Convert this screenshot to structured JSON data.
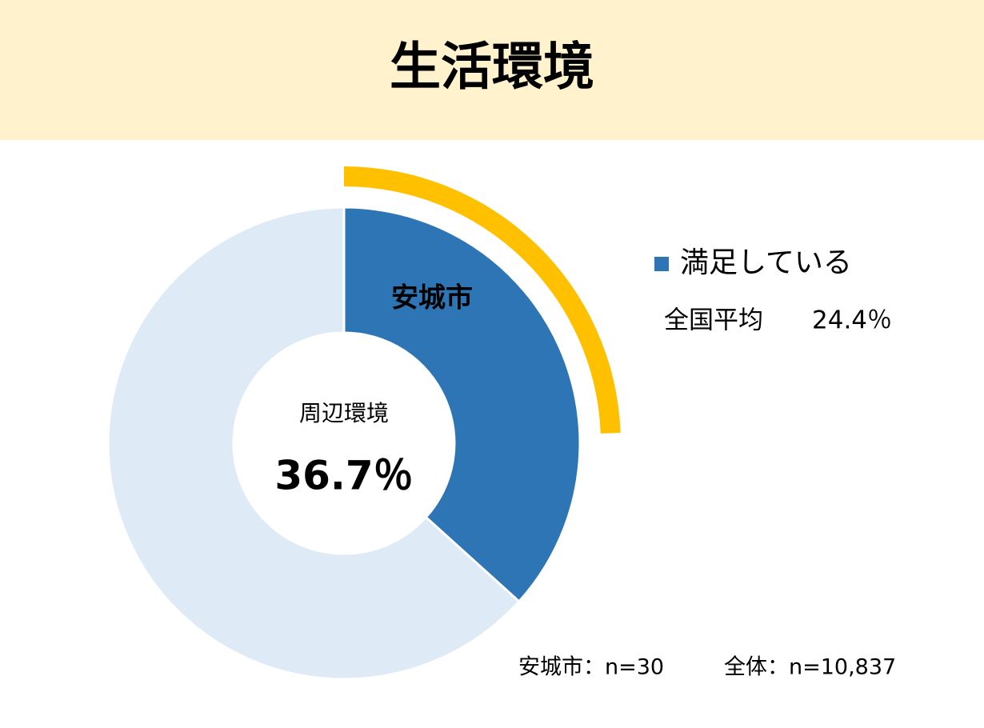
{
  "header": {
    "title": "生活環境"
  },
  "chart_data": {
    "type": "donut",
    "categories": [
      "満足している",
      null
    ],
    "series": [
      {
        "name": "安城市",
        "colors": [
          "#2e75b6",
          "#deebf7"
        ],
        "values": [
          36.7,
          63.3
        ],
        "value_labels": [
          "36.7％",
          null
        ]
      }
    ],
    "center_label": "周辺環境",
    "benchmark": {
      "name": "全国平均",
      "value": 24.4,
      "value_label": "24.4％",
      "color": "#ffc000"
    },
    "notes": [
      "安城市：n=30",
      "全体：n=10,837"
    ]
  }
}
